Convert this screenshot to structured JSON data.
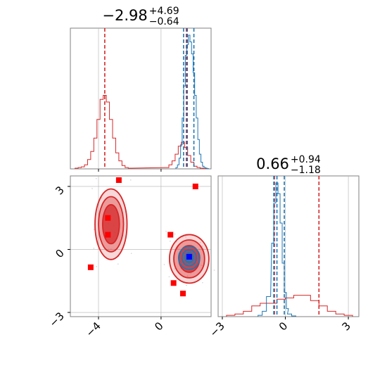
{
  "colors": {
    "red": "#d62728",
    "blue": "#1f77b4",
    "marker_red": "#ff0000",
    "marker_blue": "#0000ff",
    "grid": "#b0b0b0",
    "spine": "#808080"
  },
  "chart_data": {
    "type": "corner",
    "parameters": [
      {
        "title": {
          "value": "−2.98",
          "plus": "+4.69",
          "minus": "−0.64"
        },
        "range": [
          -5.8,
          3.2
        ],
        "ticks": [
          -4,
          0
        ],
        "tick_labels": [
          "−4",
          "0"
        ]
      },
      {
        "title": {
          "value": "0.66",
          "plus": "+0.94",
          "minus": "−1.18"
        },
        "range": [
          -3.2,
          3.5
        ],
        "ticks": [
          -3,
          0,
          3
        ],
        "tick_labels": [
          "−3",
          "0",
          "3"
        ]
      }
    ],
    "grid": true,
    "series": [
      {
        "color": "red",
        "p1_hist": {
          "bins": [
            -5.4,
            -5.2,
            -5.0,
            -4.8,
            -4.6,
            -4.4,
            -4.2,
            -4.0,
            -3.8,
            -3.6,
            -3.4,
            -3.2,
            -3.0,
            -2.8,
            -2.6,
            -2.4,
            -2.2,
            -2.0,
            0.4,
            0.6,
            0.8,
            1.0,
            1.2,
            1.4,
            1.6,
            1.8,
            2.0,
            2.2,
            2.4,
            2.6,
            2.8
          ],
          "heights": [
            0.005,
            0.01,
            0.015,
            0.03,
            0.07,
            0.13,
            0.23,
            0.37,
            0.52,
            0.55,
            0.5,
            0.37,
            0.23,
            0.12,
            0.06,
            0.025,
            0.01,
            0.005,
            0.01,
            0.03,
            0.06,
            0.11,
            0.17,
            0.2,
            0.16,
            0.1,
            0.05,
            0.02,
            0.01,
            0.005,
            0.002
          ]
        },
        "p1_quantiles": [
          -3.6,
          1.62
        ],
        "p2_hist": {
          "bins": [
            -2.6,
            -2.2,
            -1.8,
            -1.4,
            -1.0,
            -0.6,
            -0.2,
            0.2,
            0.6,
            1.0,
            1.4,
            1.8,
            2.2,
            2.6,
            3.0
          ],
          "heights": [
            0.01,
            0.02,
            0.04,
            0.08,
            0.1,
            0.1,
            0.13,
            0.14,
            0.16,
            0.16,
            0.12,
            0.08,
            0.04,
            0.02,
            0.01
          ]
        },
        "p2_quantiles": [
          -0.52,
          1.6
        ],
        "contour_clusters": [
          {
            "center": [
              -3.2,
              1.2
            ],
            "spread": [
              1.3,
              3.2
            ]
          },
          {
            "center": [
              1.8,
              -0.45
            ],
            "spread": [
              1.6,
              2.2
            ]
          }
        ]
      },
      {
        "color": "blue",
        "p1_hist": {
          "bins": [
            1.0,
            1.1,
            1.2,
            1.3,
            1.4,
            1.5,
            1.6,
            1.7,
            1.8,
            1.9,
            2.0,
            2.1,
            2.2,
            2.3,
            2.4,
            2.5,
            2.6,
            2.7,
            2.8,
            2.9,
            3.0
          ],
          "heights": [
            0.01,
            0.03,
            0.08,
            0.18,
            0.38,
            0.62,
            0.85,
            0.93,
            1.0,
            0.95,
            0.86,
            0.72,
            0.55,
            0.38,
            0.22,
            0.11,
            0.05,
            0.02,
            0.01,
            0.005,
            0.002
          ]
        },
        "p1_quantiles": [
          1.44,
          1.68,
          2.1
        ],
        "p2_hist": {
          "bins": [
            -1.2,
            -1.0,
            -0.8,
            -0.6,
            -0.5,
            -0.4,
            -0.3,
            -0.2,
            -0.1,
            0.0,
            0.1,
            0.2,
            0.4
          ],
          "heights": [
            0.01,
            0.04,
            0.15,
            0.55,
            0.85,
            1.0,
            0.92,
            0.7,
            0.4,
            0.18,
            0.06,
            0.02,
            0.005
          ]
        },
        "p2_quantiles": [
          -0.55,
          -0.4,
          -0.05
        ],
        "contour_clusters": [
          {
            "center": [
              1.8,
              -0.4
            ],
            "spread": [
              0.9,
              1.1
            ]
          }
        ]
      }
    ],
    "markers": [
      {
        "x": -2.7,
        "y": 3.3,
        "color": "marker_red"
      },
      {
        "x": 2.2,
        "y": 3.0,
        "color": "marker_red"
      },
      {
        "x": -3.4,
        "y": 1.5,
        "color": "marker_red"
      },
      {
        "x": -3.4,
        "y": 0.7,
        "color": "marker_red"
      },
      {
        "x": 0.6,
        "y": 0.7,
        "color": "marker_red"
      },
      {
        "x": -4.5,
        "y": -0.85,
        "color": "marker_red"
      },
      {
        "x": 0.8,
        "y": -1.6,
        "color": "marker_red"
      },
      {
        "x": 1.4,
        "y": -2.1,
        "color": "marker_red"
      },
      {
        "x": 1.8,
        "y": -0.35,
        "color": "marker_blue"
      }
    ]
  }
}
